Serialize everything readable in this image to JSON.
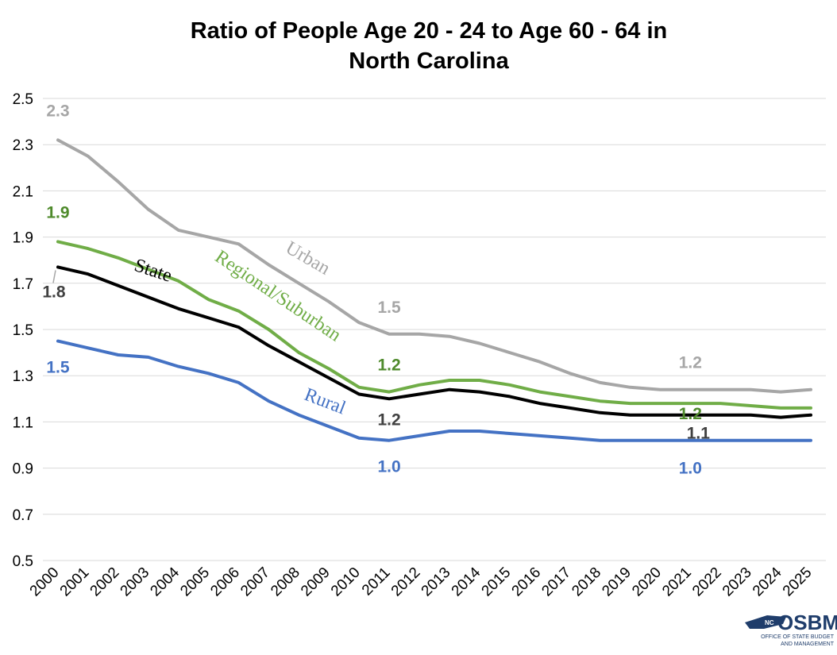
{
  "chart_data": {
    "type": "line",
    "title_line1": "Ratio of People Age 20 - 24 to Age 60 - 64 in",
    "title_line2": "North Carolina",
    "xlabel": "",
    "ylabel": "",
    "ylim": [
      0.5,
      2.5
    ],
    "yticks": [
      "0.5",
      "0.7",
      "0.9",
      "1.1",
      "1.3",
      "1.5",
      "1.7",
      "1.9",
      "2.1",
      "2.3",
      "2.5"
    ],
    "categories": [
      "2000",
      "2001",
      "2002",
      "2003",
      "2004",
      "2005",
      "2006",
      "2007",
      "2008",
      "2009",
      "2010",
      "2011",
      "2012",
      "2013",
      "2014",
      "2015",
      "2016",
      "2017",
      "2018",
      "2019",
      "2020",
      "2021",
      "2022",
      "2023",
      "2024",
      "2025"
    ],
    "grid": true,
    "legend": "none",
    "series": [
      {
        "name": "Urban",
        "color": "#a6a6a6",
        "values": [
          2.32,
          2.25,
          2.14,
          2.02,
          1.93,
          1.9,
          1.87,
          1.78,
          1.7,
          1.62,
          1.53,
          1.48,
          1.48,
          1.47,
          1.44,
          1.4,
          1.36,
          1.31,
          1.27,
          1.25,
          1.24,
          1.24,
          1.24,
          1.24,
          1.23,
          1.24
        ],
        "annotations": [
          {
            "category": "2000",
            "text": "2.3"
          },
          {
            "category": "2011",
            "text": "1.5"
          },
          {
            "category": "2021",
            "text": "1.2"
          }
        ]
      },
      {
        "name": "Regional/Suburban",
        "color": "#70ad47",
        "label_color": "#4e8a2b",
        "values": [
          1.88,
          1.85,
          1.81,
          1.76,
          1.71,
          1.63,
          1.58,
          1.5,
          1.4,
          1.33,
          1.25,
          1.23,
          1.26,
          1.28,
          1.28,
          1.26,
          1.23,
          1.21,
          1.19,
          1.18,
          1.18,
          1.18,
          1.18,
          1.17,
          1.16,
          1.16
        ],
        "annotations": [
          {
            "category": "2000",
            "text": "1.9"
          },
          {
            "category": "2011",
            "text": "1.2"
          },
          {
            "category": "2021",
            "text": "1.2"
          }
        ]
      },
      {
        "name": "State",
        "color": "#000000",
        "label_color": "#404040",
        "values": [
          1.77,
          1.74,
          1.69,
          1.64,
          1.59,
          1.55,
          1.51,
          1.43,
          1.36,
          1.29,
          1.22,
          1.2,
          1.22,
          1.24,
          1.23,
          1.21,
          1.18,
          1.16,
          1.14,
          1.13,
          1.13,
          1.13,
          1.13,
          1.13,
          1.12,
          1.13
        ],
        "annotations": [
          {
            "category": "2000",
            "text": "1.8"
          },
          {
            "category": "2011",
            "text": "1.2"
          },
          {
            "category": "2021",
            "text": "1.1"
          }
        ]
      },
      {
        "name": "Rural",
        "color": "#4472c4",
        "values": [
          1.45,
          1.42,
          1.39,
          1.38,
          1.34,
          1.31,
          1.27,
          1.19,
          1.13,
          1.08,
          1.03,
          1.02,
          1.04,
          1.06,
          1.06,
          1.05,
          1.04,
          1.03,
          1.02,
          1.02,
          1.02,
          1.02,
          1.02,
          1.02,
          1.02,
          1.02
        ],
        "annotations": [
          {
            "category": "2000",
            "text": "1.5"
          },
          {
            "category": "2011",
            "text": "1.0"
          },
          {
            "category": "2021",
            "text": "1.0"
          }
        ]
      }
    ]
  },
  "logo": {
    "mark": "NC",
    "name": "OSBM",
    "sub1": "OFFICE OF STATE BUDGET",
    "sub2": "AND MANAGEMENT"
  }
}
